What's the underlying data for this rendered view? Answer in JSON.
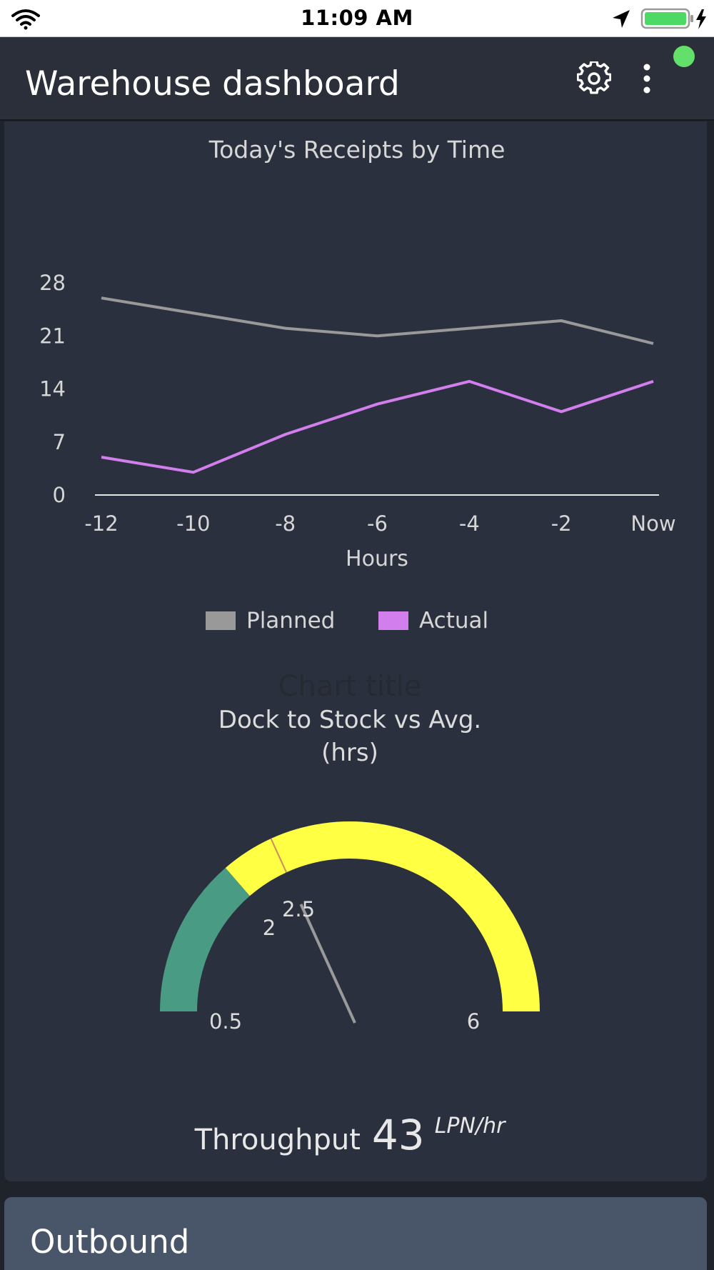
{
  "status_bar": {
    "time": "11:09 AM",
    "icons": [
      "wifi-icon",
      "location-arrow-icon",
      "battery-charging-icon"
    ]
  },
  "header": {
    "title": "Warehouse dashboard",
    "icons": [
      "gear-icon",
      "more-vertical-icon"
    ],
    "status_color": "#63e069"
  },
  "receipts_chart": {
    "title": "Today's Receipts by Time",
    "chart_data": {
      "type": "line",
      "title": "Today's Receipts by Time",
      "xlabel": "Hours",
      "ylabel": "",
      "categories": [
        "-12",
        "-10",
        "-8",
        "-6",
        "-4",
        "-2",
        "Now"
      ],
      "yticks": [
        "0",
        "7",
        "14",
        "21",
        "28"
      ],
      "ylim": [
        0,
        28
      ],
      "series": [
        {
          "name": "Planned",
          "color": "#999999",
          "values": [
            26,
            24,
            22,
            21,
            22,
            23,
            20
          ]
        },
        {
          "name": "Actual",
          "color": "#d27fed",
          "values": [
            5,
            3,
            8,
            12,
            15,
            11,
            15
          ]
        }
      ],
      "legend": "bottom",
      "grid": false
    }
  },
  "gauge": {
    "ghost_title": "Chart title",
    "title_line1": "Dock to Stock vs Avg.",
    "title_line2": "(hrs)",
    "chart_data": {
      "type": "gauge",
      "min": 0.5,
      "max": 6,
      "value": 2.5,
      "bands": [
        {
          "from": 0.5,
          "to": 2,
          "color": "#499b83"
        },
        {
          "from": 2,
          "to": 6,
          "color": "#ffff44"
        }
      ],
      "marker": 2.5,
      "labels": {
        "min": "0.5",
        "band": "2",
        "marker": "2.5",
        "max": "6"
      }
    }
  },
  "throughput": {
    "label": "Throughput",
    "value": "43",
    "unit": "LPN/hr"
  },
  "outbound": {
    "title": "Outbound"
  }
}
